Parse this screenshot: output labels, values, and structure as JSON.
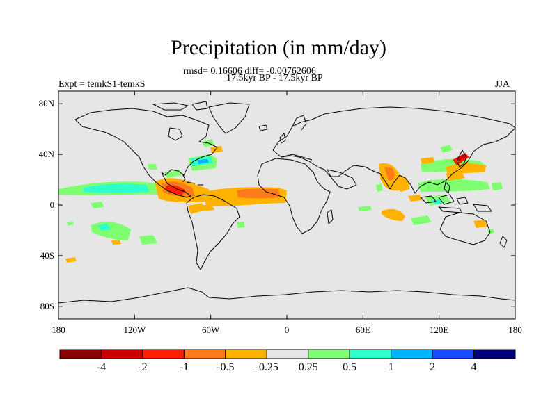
{
  "title": "Precipitation (in mm/day)",
  "stats": "rmsd= 0.16606 diff= -0.00762606",
  "period": "17.5kyr BP - 17.5kyr BP",
  "experiment": "Expt = temkS1-temkS",
  "season": "JJA",
  "map_data": {
    "projection": "cylindrical-equidistant",
    "lon_range": [
      -180,
      180
    ],
    "lat_range": [
      -90,
      90
    ],
    "background_color": "#e6e6e6",
    "lat_ticks": [
      {
        "value": 80,
        "label": "80N"
      },
      {
        "value": 40,
        "label": "40N"
      },
      {
        "value": 0,
        "label": "0"
      },
      {
        "value": -40,
        "label": "40S"
      },
      {
        "value": -80,
        "label": "80S"
      }
    ],
    "lon_ticks": [
      {
        "value": -180,
        "label": "180"
      },
      {
        "value": -120,
        "label": "120W"
      },
      {
        "value": -60,
        "label": "60W"
      },
      {
        "value": 0,
        "label": "0"
      },
      {
        "value": 60,
        "label": "60E"
      },
      {
        "value": 120,
        "label": "120E"
      },
      {
        "value": 180,
        "label": "180"
      }
    ],
    "anomalies": [
      {
        "region": "tropical-east-pacific",
        "class": "pos_0p5_1",
        "lon": [
          -170,
          -100
        ],
        "lat": [
          10,
          14
        ]
      },
      {
        "region": "tropical-east-pacific",
        "class": "pos_0p25_0p5",
        "lon": [
          -180,
          -95
        ],
        "lat": [
          8,
          18
        ]
      },
      {
        "region": "central-america",
        "class": "neg_1_2",
        "lon": [
          -100,
          -80
        ],
        "lat": [
          8,
          16
        ]
      },
      {
        "region": "tropical-atlantic",
        "class": "neg_0p25_0p5",
        "lon": [
          -80,
          -10
        ],
        "lat": [
          -2,
          10
        ]
      },
      {
        "region": "tropical-atlantic",
        "class": "neg_0p5_1",
        "lon": [
          -35,
          -20
        ],
        "lat": [
          2,
          8
        ]
      },
      {
        "region": "gulf-stream",
        "class": "pos_1_2",
        "lon": [
          -72,
          -60
        ],
        "lat": [
          34,
          38
        ]
      },
      {
        "region": "arabian-sea",
        "class": "neg_0p25_0p5",
        "lon": [
          65,
          80
        ],
        "lat": [
          12,
          30
        ]
      },
      {
        "region": "bay-of-bengal",
        "class": "neg_0p25_0p5",
        "lon": [
          82,
          95
        ],
        "lat": [
          10,
          22
        ]
      },
      {
        "region": "east-asia",
        "class": "neg_1_2",
        "lon": [
          125,
          138
        ],
        "lat": [
          34,
          40
        ]
      },
      {
        "region": "west-pacific",
        "class": "pos_0p25_0p5",
        "lon": [
          110,
          150
        ],
        "lat": [
          0,
          20
        ]
      },
      {
        "region": "south-pacific",
        "class": "pos_0p25_0p5",
        "lon": [
          -150,
          -115
        ],
        "lat": [
          -30,
          -14
        ]
      },
      {
        "region": "south-indian",
        "class": "neg_0p25_0p5",
        "lon": [
          70,
          90
        ],
        "lat": [
          -12,
          -6
        ]
      }
    ]
  },
  "colorbar": {
    "colors": [
      "#8b0000",
      "#cc0000",
      "#ff2000",
      "#ff7a1a",
      "#ffb300",
      "#e6e6e6",
      "#80ff70",
      "#2fffcc",
      "#00b5ff",
      "#1a4cff",
      "#00007a"
    ],
    "labels": [
      "-4",
      "-2",
      "-1",
      "-0.5",
      "-0.25",
      "0.25",
      "0.5",
      "1",
      "2",
      "4"
    ]
  }
}
